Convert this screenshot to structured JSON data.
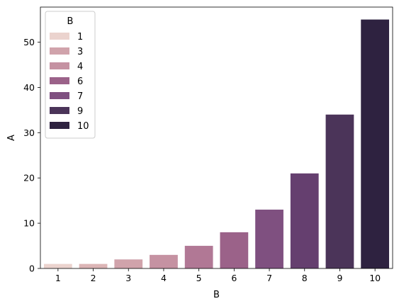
{
  "chart_data": {
    "type": "bar",
    "xlabel": "B",
    "ylabel": "A",
    "categories": [
      "1",
      "2",
      "3",
      "4",
      "5",
      "6",
      "7",
      "8",
      "9",
      "10"
    ],
    "values": [
      1,
      1,
      2,
      3,
      5,
      8,
      13,
      21,
      34,
      55
    ],
    "ylim": [
      0,
      57.75
    ],
    "yticks": [
      0,
      10,
      20,
      30,
      40,
      50
    ],
    "grid": false,
    "bar_colors": [
      "#ebd3ce",
      "#dcb5b6",
      "#d0a3ab",
      "#c592a2",
      "#b17895",
      "#9b6289",
      "#7f5080",
      "#653f6f",
      "#4b3459",
      "#2e2240"
    ],
    "legend": {
      "title": "B",
      "placement": "top-left",
      "entries": [
        {
          "label": "1",
          "color": "#ebd3ce"
        },
        {
          "label": "3",
          "color": "#d0a3ab"
        },
        {
          "label": "4",
          "color": "#c592a2"
        },
        {
          "label": "6",
          "color": "#9b6289"
        },
        {
          "label": "7",
          "color": "#7f5080"
        },
        {
          "label": "9",
          "color": "#4b3459"
        },
        {
          "label": "10",
          "color": "#2e2240"
        }
      ]
    }
  }
}
